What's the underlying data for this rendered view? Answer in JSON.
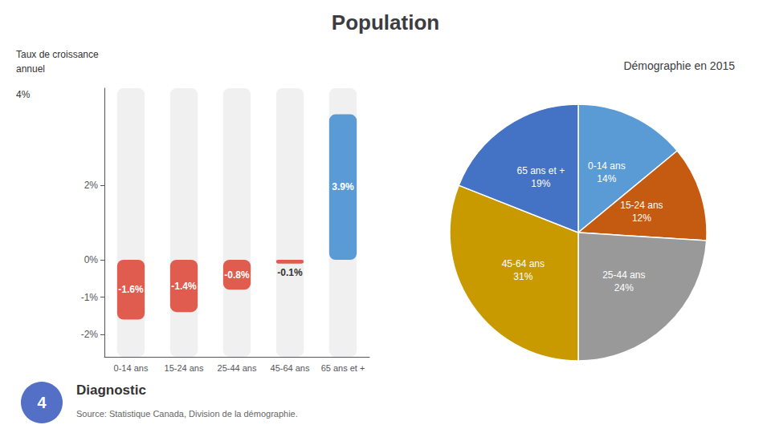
{
  "title": "Population",
  "annotations": [
    "4",
    "Diagnostic",
    "Source: Statistique Canada, Division de la démographie."
  ],
  "chart_data": [
    {
      "type": "bar",
      "categories": [
        "0-14 ans",
        "15-24 ans",
        "25-44 ans",
        "45-64 ans",
        "65 ans et +"
      ],
      "values": [
        -1.6,
        -1.4,
        -0.8,
        -0.1,
        3.9
      ],
      "value_labels": [
        "-1.6%",
        "-1.4%",
        "-0.8%",
        "-0.1%",
        "3.9%"
      ],
      "data_labels": true,
      "colors": [
        "#e05c4e",
        "#e05c4e",
        "#e05c4e",
        "#e05c4e",
        "#5b9bd5"
      ],
      "ylim": [
        -2.6,
        4.6
      ],
      "yticks": [
        {
          "value": -2,
          "label": "-2%"
        },
        {
          "value": -1,
          "label": "-1%"
        },
        {
          "value": 0,
          "label": "0%"
        },
        {
          "value": 2,
          "label": "2%"
        }
      ],
      "grid": false,
      "annotations": [
        "Taux de croissance",
        "annuel",
        "4%"
      ]
    },
    {
      "type": "pie",
      "title": "Démographie en 2015",
      "categories": [
        "0-14 ans",
        "15-24 ans",
        "25-44 ans",
        "45-64 ans",
        "65 ans et +"
      ],
      "values": [
        14,
        12,
        24,
        31,
        19
      ],
      "value_labels": [
        "14%",
        "12%",
        "24%",
        "31%",
        "19%"
      ],
      "data_labels": true,
      "colors": [
        "#5b9bd5",
        "#c55a11",
        "#999999",
        "#c99900",
        "#4472c4"
      ]
    }
  ]
}
